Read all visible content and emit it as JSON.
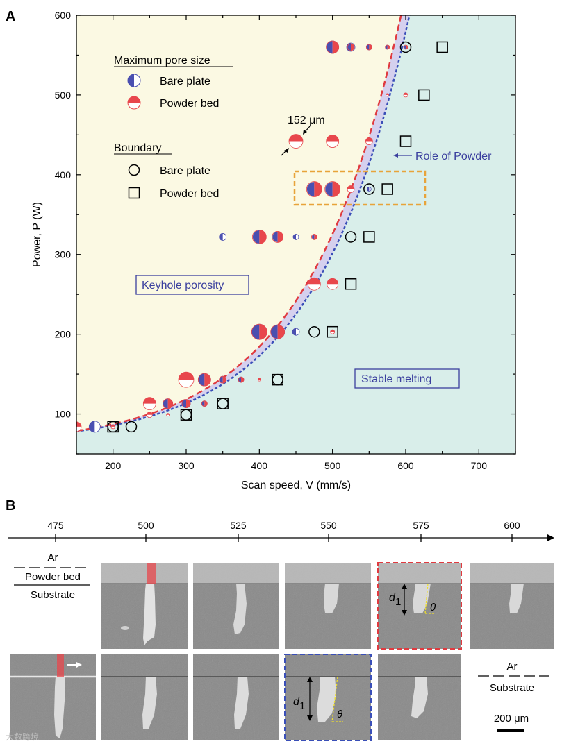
{
  "panel_a_label": "A",
  "panel_b_label": "B",
  "chart_data": {
    "type": "scatter",
    "xlabel": "Scan speed, V (mm/s)",
    "ylabel": "Power, P (W)",
    "xlim": [
      150,
      750
    ],
    "ylim": [
      50,
      600
    ],
    "x_ticks": [
      200,
      300,
      400,
      500,
      600,
      700
    ],
    "y_ticks": [
      100,
      200,
      300,
      400,
      500,
      600
    ],
    "colors": {
      "bare_plate": "#4a4fb0",
      "powder_bed": "#e8474c",
      "keyhole_region": "#fbf9e3",
      "stable_region": "#d9eeea",
      "powder_band": "#d5d0ee",
      "orange_box": "#e8a33a"
    },
    "legend": {
      "pore_heading": "Maximum pore size",
      "pore_bare": "Bare plate",
      "pore_powder": "Powder bed",
      "boundary_heading": "Boundary",
      "boundary_bare": "Bare plate",
      "boundary_powder": "Powder bed"
    },
    "annotations": {
      "pore_size": "152 μm",
      "role_of_powder": "Role of Powder",
      "keyhole": "Keyhole porosity",
      "stable": "Stable melting"
    },
    "bare_plate_boundary": [
      [
        200,
        84
      ],
      [
        225,
        84
      ],
      [
        300,
        99
      ],
      [
        350,
        113
      ],
      [
        425,
        143
      ],
      [
        475,
        203
      ],
      [
        525,
        322
      ],
      [
        550,
        382
      ],
      [
        600,
        560
      ]
    ],
    "powder_bed_boundary": [
      [
        200,
        84
      ],
      [
        300,
        99
      ],
      [
        350,
        113
      ],
      [
        425,
        143
      ],
      [
        500,
        203
      ],
      [
        525,
        263
      ],
      [
        550,
        322
      ],
      [
        575,
        382
      ],
      [
        600,
        442
      ],
      [
        625,
        500
      ],
      [
        650,
        560
      ]
    ],
    "pores": [
      {
        "V": 500,
        "P": 560,
        "bare": 9,
        "powder": 9
      },
      {
        "V": 525,
        "P": 560,
        "bare": 6,
        "powder": 5
      },
      {
        "V": 550,
        "P": 560,
        "bare": 4,
        "powder": 4
      },
      {
        "V": 575,
        "P": 560,
        "bare": 3,
        "powder": 3
      },
      {
        "V": 600,
        "P": 560,
        "bare": 2,
        "powder": 3
      },
      {
        "V": 575,
        "P": 500,
        "bare": 0,
        "powder": 2
      },
      {
        "V": 600,
        "P": 500,
        "bare": 0,
        "powder": 3
      },
      {
        "V": 450,
        "P": 442,
        "bare": 0,
        "powder": 10
      },
      {
        "V": 500,
        "P": 442,
        "bare": 0,
        "powder": 9
      },
      {
        "V": 550,
        "P": 442,
        "bare": 0,
        "powder": 5
      },
      {
        "V": 475,
        "P": 382,
        "bare": 10,
        "powder": 11
      },
      {
        "V": 500,
        "P": 382,
        "bare": 10,
        "powder": 11
      },
      {
        "V": 525,
        "P": 382,
        "bare": 0,
        "powder": 5
      },
      {
        "V": 550,
        "P": 382,
        "bare": 3,
        "powder": 0
      },
      {
        "V": 350,
        "P": 322,
        "bare": 5,
        "powder": 0
      },
      {
        "V": 400,
        "P": 322,
        "bare": 9,
        "powder": 10
      },
      {
        "V": 425,
        "P": 322,
        "bare": 7,
        "powder": 8
      },
      {
        "V": 450,
        "P": 322,
        "bare": 4,
        "powder": 0
      },
      {
        "V": 475,
        "P": 322,
        "bare": 3,
        "powder": 4
      },
      {
        "V": 475,
        "P": 263,
        "bare": 0,
        "powder": 9
      },
      {
        "V": 500,
        "P": 263,
        "bare": 0,
        "powder": 8
      },
      {
        "V": 400,
        "P": 203,
        "bare": 11,
        "powder": 11
      },
      {
        "V": 425,
        "P": 203,
        "bare": 10,
        "powder": 10
      },
      {
        "V": 450,
        "P": 203,
        "bare": 5,
        "powder": 0
      },
      {
        "V": 500,
        "P": 203,
        "bare": 0,
        "powder": 3
      },
      {
        "V": 300,
        "P": 143,
        "bare": 0,
        "powder": 11
      },
      {
        "V": 325,
        "P": 143,
        "bare": 9,
        "powder": 9
      },
      {
        "V": 350,
        "P": 143,
        "bare": 5,
        "powder": 5
      },
      {
        "V": 375,
        "P": 143,
        "bare": 4,
        "powder": 4
      },
      {
        "V": 400,
        "P": 143,
        "bare": 0,
        "powder": 2
      },
      {
        "V": 250,
        "P": 113,
        "bare": 0,
        "powder": 9
      },
      {
        "V": 275,
        "P": 113,
        "bare": 7,
        "powder": 7
      },
      {
        "V": 300,
        "P": 113,
        "bare": 6,
        "powder": 6
      },
      {
        "V": 325,
        "P": 113,
        "bare": 4,
        "powder": 4
      },
      {
        "V": 250,
        "P": 99,
        "bare": 0,
        "powder": 4
      },
      {
        "V": 275,
        "P": 99,
        "bare": 0,
        "powder": 2
      },
      {
        "V": 150,
        "P": 84,
        "bare": 0,
        "powder": 7
      },
      {
        "V": 175,
        "P": 84,
        "bare": 8,
        "powder": 0
      },
      {
        "V": 200,
        "P": 84,
        "bare": 0,
        "powder": 3
      }
    ]
  },
  "panel_b": {
    "axis_ticks": [
      "475",
      "500",
      "525",
      "550",
      "575",
      "600"
    ],
    "legend_top": {
      "gas": "Ar",
      "layer": "Powder bed",
      "base": "Substrate"
    },
    "legend_bottom": {
      "gas": "Ar",
      "base": "Substrate"
    },
    "depth_label": "d",
    "depth_subscript": "1",
    "angle_label": "θ",
    "scale_bar": "200 μm",
    "watermark": "大数跨境"
  }
}
